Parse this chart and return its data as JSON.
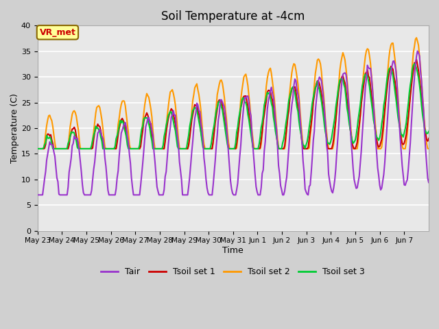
{
  "title": "Soil Temperature at -4cm",
  "xlabel": "Time",
  "ylabel": "Temperature (C)",
  "ylim": [
    0,
    40
  ],
  "yticks": [
    0,
    5,
    10,
    15,
    20,
    25,
    30,
    35,
    40
  ],
  "x_labels": [
    "May 23",
    "May 24",
    "May 25",
    "May 26",
    "May 27",
    "May 28",
    "May 29",
    "May 30",
    "May 31",
    "Jun 1",
    "Jun 2",
    "Jun 3",
    "Jun 4",
    "Jun 5",
    "Jun 6",
    "Jun 7"
  ],
  "legend_labels": [
    "Tair",
    "Tsoil set 1",
    "Tsoil set 2",
    "Tsoil set 3"
  ],
  "legend_colors": [
    "#9933cc",
    "#cc0000",
    "#ff9900",
    "#00cc33"
  ],
  "annotation_text": "VR_met",
  "annotation_color": "#cc0000",
  "annotation_bg": "#ffff99",
  "annotation_edge": "#886600",
  "title_fontsize": 12,
  "tick_fontsize": 8,
  "label_fontsize": 9
}
